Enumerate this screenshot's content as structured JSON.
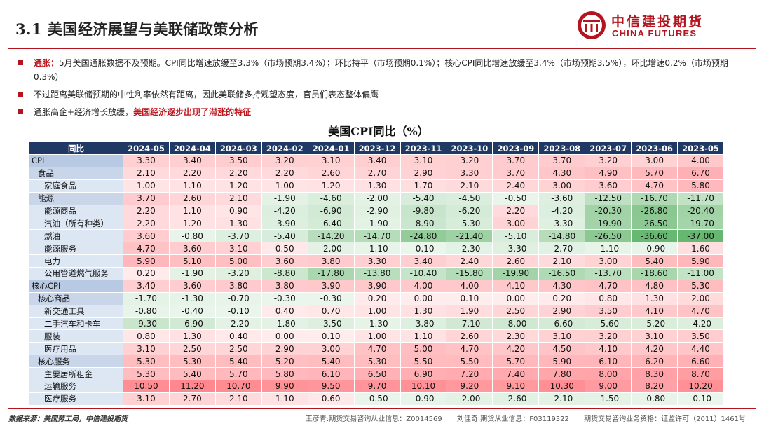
{
  "header": {
    "title": "3.1 美国经济展望与美联储政策分析",
    "logo_cn": "中信建投期货",
    "logo_en": "CHINA FUTURES",
    "brand_color": "#b4141e"
  },
  "bullets": {
    "b1_label": "通胀：",
    "b1_text": "5月美国通胀数据不及预期。CPI同比增速放缓至3.3%（市场预期3.4%）；环比持平（市场预期0.1%）；核心CPI同比增速放缓至3.4%（市场预期3.5%），环比增速0.2%（市场预期0.3%）",
    "b2_text": "不过距离美联储预期的中性利率依然有距离，因此美联储多持观望态度，官员们表态整体偏鹰",
    "b3_text": "通胀高企+经济增长放缓，",
    "b3_emph": "美国经济逐步出现了滞涨的特征"
  },
  "chart_data": {
    "type": "table",
    "title": "美国CPI同比（%）",
    "header_label": "同比",
    "columns": [
      "2024-05",
      "2024-04",
      "2024-03",
      "2024-02",
      "2024-01",
      "2023-12",
      "2023-11",
      "2023-10",
      "2023-09",
      "2023-08",
      "2023-07",
      "2023-06",
      "2023-05"
    ],
    "rows": [
      {
        "label": "CPI",
        "level": 0,
        "values": [
          "3.30",
          "3.40",
          "3.50",
          "3.20",
          "3.10",
          "3.40",
          "3.10",
          "3.20",
          "3.70",
          "3.70",
          "3.20",
          "3.00",
          "4.00"
        ]
      },
      {
        "label": "食品",
        "level": 1,
        "values": [
          "2.10",
          "2.20",
          "2.20",
          "2.20",
          "2.60",
          "2.70",
          "2.90",
          "3.30",
          "3.70",
          "4.30",
          "4.90",
          "5.70",
          "6.70"
        ]
      },
      {
        "label": "家庭食品",
        "level": 2,
        "values": [
          "1.00",
          "1.10",
          "1.20",
          "1.00",
          "1.20",
          "1.30",
          "1.70",
          "2.10",
          "2.40",
          "3.00",
          "3.60",
          "4.70",
          "5.80"
        ]
      },
      {
        "label": "能源",
        "level": 1,
        "values": [
          "3.70",
          "2.60",
          "2.10",
          "-1.90",
          "-4.60",
          "-2.00",
          "-5.40",
          "-4.50",
          "-0.50",
          "-3.60",
          "-12.50",
          "-16.70",
          "-11.70"
        ]
      },
      {
        "label": "能源商品",
        "level": 2,
        "values": [
          "2.20",
          "1.10",
          "0.90",
          "-4.20",
          "-6.90",
          "-2.90",
          "-9.80",
          "-6.20",
          "2.20",
          "-4.20",
          "-20.30",
          "-26.80",
          "-20.40"
        ]
      },
      {
        "label": "汽油（所有种类）",
        "level": 2,
        "values": [
          "2.20",
          "1.20",
          "1.30",
          "-3.90",
          "-6.40",
          "-1.90",
          "-8.90",
          "-5.30",
          "3.00",
          "-3.30",
          "-19.90",
          "-26.50",
          "-19.70"
        ]
      },
      {
        "label": "燃油",
        "level": 2,
        "values": [
          "3.60",
          "-0.80",
          "-3.70",
          "-5.40",
          "-14.20",
          "-14.70",
          "-24.80",
          "-21.40",
          "-5.10",
          "-14.80",
          "-26.50",
          "-36.60",
          "-37.00"
        ]
      },
      {
        "label": "能源服务",
        "level": 2,
        "values": [
          "4.70",
          "3.60",
          "3.10",
          "0.50",
          "-2.00",
          "-1.10",
          "-0.10",
          "-2.30",
          "-3.30",
          "-2.70",
          "-1.10",
          "-0.90",
          "1.60"
        ]
      },
      {
        "label": "电力",
        "level": 2,
        "values": [
          "5.90",
          "5.10",
          "5.00",
          "3.60",
          "3.80",
          "3.30",
          "3.40",
          "2.40",
          "2.60",
          "2.10",
          "3.00",
          "5.40",
          "5.90"
        ]
      },
      {
        "label": "公用管道燃气服务",
        "level": 2,
        "values": [
          "0.20",
          "-1.90",
          "-3.20",
          "-8.80",
          "-17.80",
          "-13.80",
          "-10.40",
          "-15.80",
          "-19.90",
          "-16.50",
          "-13.70",
          "-18.60",
          "-11.00"
        ]
      },
      {
        "label": "核心CPI",
        "level": 0,
        "values": [
          "3.40",
          "3.60",
          "3.80",
          "3.80",
          "3.90",
          "3.90",
          "4.00",
          "4.00",
          "4.10",
          "4.30",
          "4.70",
          "4.80",
          "5.30"
        ]
      },
      {
        "label": "核心商品",
        "level": 1,
        "values": [
          "-1.70",
          "-1.30",
          "-0.70",
          "-0.30",
          "-0.30",
          "0.20",
          "0.00",
          "0.10",
          "0.00",
          "0.20",
          "0.80",
          "1.30",
          "2.00"
        ]
      },
      {
        "label": "新交通工具",
        "level": 2,
        "values": [
          "-0.80",
          "-0.40",
          "-0.10",
          "0.40",
          "0.70",
          "1.00",
          "1.30",
          "1.90",
          "2.50",
          "2.90",
          "3.50",
          "4.10",
          "4.70"
        ]
      },
      {
        "label": "二手汽车和卡车",
        "level": 2,
        "values": [
          "-9.30",
          "-6.90",
          "-2.20",
          "-1.80",
          "-3.50",
          "-1.30",
          "-3.80",
          "-7.10",
          "-8.00",
          "-6.60",
          "-5.60",
          "-5.20",
          "-4.20"
        ]
      },
      {
        "label": "服装",
        "level": 2,
        "values": [
          "0.80",
          "1.30",
          "0.40",
          "0.00",
          "0.10",
          "1.00",
          "1.10",
          "2.60",
          "2.30",
          "3.10",
          "3.20",
          "3.10",
          "3.50"
        ]
      },
      {
        "label": "医疗用品",
        "level": 2,
        "values": [
          "3.10",
          "2.50",
          "2.50",
          "2.90",
          "3.00",
          "4.70",
          "5.00",
          "4.70",
          "4.20",
          "4.50",
          "4.10",
          "4.20",
          "4.40"
        ]
      },
      {
        "label": "核心服务",
        "level": 1,
        "values": [
          "5.30",
          "5.30",
          "5.40",
          "5.20",
          "5.40",
          "5.30",
          "5.50",
          "5.50",
          "5.70",
          "5.90",
          "6.10",
          "6.20",
          "6.60"
        ]
      },
      {
        "label": "主要居所租金",
        "level": 2,
        "values": [
          "5.30",
          "5.40",
          "5.70",
          "5.80",
          "6.10",
          "6.50",
          "6.90",
          "7.20",
          "7.40",
          "7.80",
          "8.00",
          "8.30",
          "8.70"
        ]
      },
      {
        "label": "运输服务",
        "level": 2,
        "values": [
          "10.50",
          "11.20",
          "10.70",
          "9.90",
          "9.50",
          "9.70",
          "10.10",
          "9.20",
          "9.10",
          "10.30",
          "9.00",
          "8.20",
          "10.20"
        ]
      },
      {
        "label": "医疗服务",
        "level": 2,
        "values": [
          "3.10",
          "2.70",
          "2.10",
          "1.10",
          "0.60",
          "-0.50",
          "-0.90",
          "-2.00",
          "-2.60",
          "-2.10",
          "-1.50",
          "-0.80",
          "-0.10"
        ]
      }
    ],
    "colors": {
      "header_bg": "#1f3864",
      "positive": "#e8454f",
      "negative": "#2e8b3e"
    }
  },
  "footer": {
    "source": "数据来源：美国劳工局，中信建投期货",
    "credit1": "王彦青:期货交易咨询从业信息：Z0014569",
    "credit2": "刘佳奇:期货从业信息：F03119322",
    "credit3": "期货交易咨询业务资格：证监许可（2011）1461号"
  }
}
